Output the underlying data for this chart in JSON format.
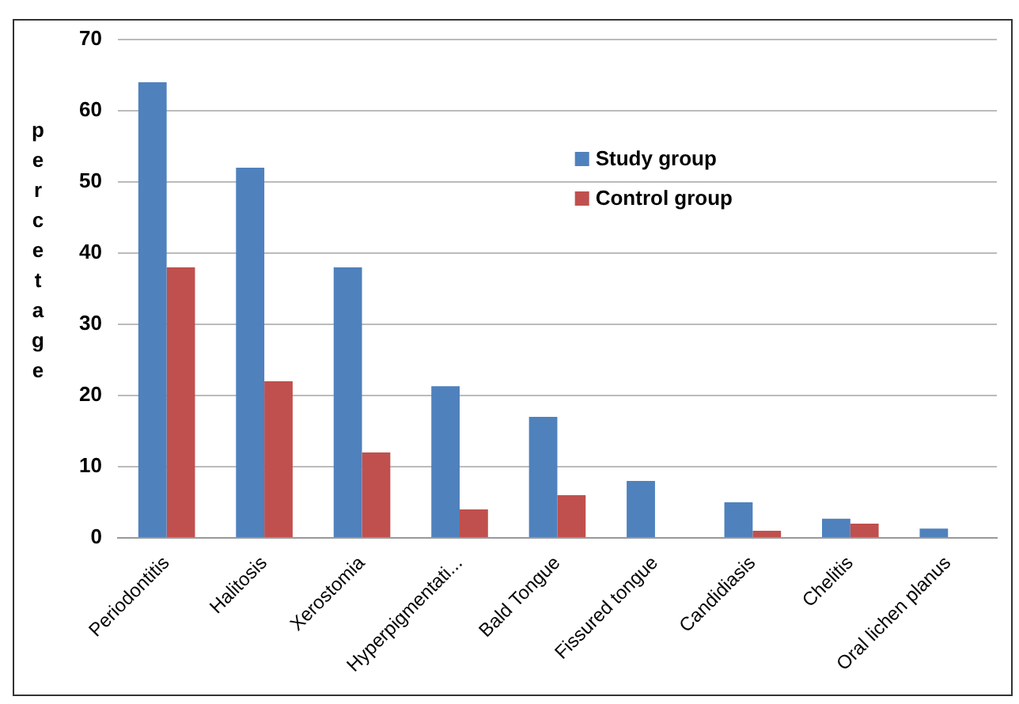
{
  "chart_data": {
    "type": "bar",
    "ylabel": "percetage",
    "categories": [
      "Periodontitis",
      "Halitosis",
      "Xerostomia",
      "Hyperpigmentati...",
      "Bald Tongue",
      "Fissured tongue",
      "Candidiasis",
      "Chelitis",
      "Oral lichen planus"
    ],
    "series": [
      {
        "name": "Study group",
        "color": "#4f81bd",
        "values": [
          64,
          52,
          38,
          21.3,
          17,
          8,
          5,
          2.7,
          1.3
        ]
      },
      {
        "name": "Control group",
        "color": "#c0504d",
        "values": [
          38,
          22,
          12,
          4,
          6,
          0,
          1,
          2,
          0
        ]
      }
    ],
    "ylim": [
      0,
      70
    ],
    "yticks": [
      0,
      10,
      20,
      30,
      40,
      50,
      60,
      70
    ],
    "grid": "y",
    "legend": "top right"
  }
}
